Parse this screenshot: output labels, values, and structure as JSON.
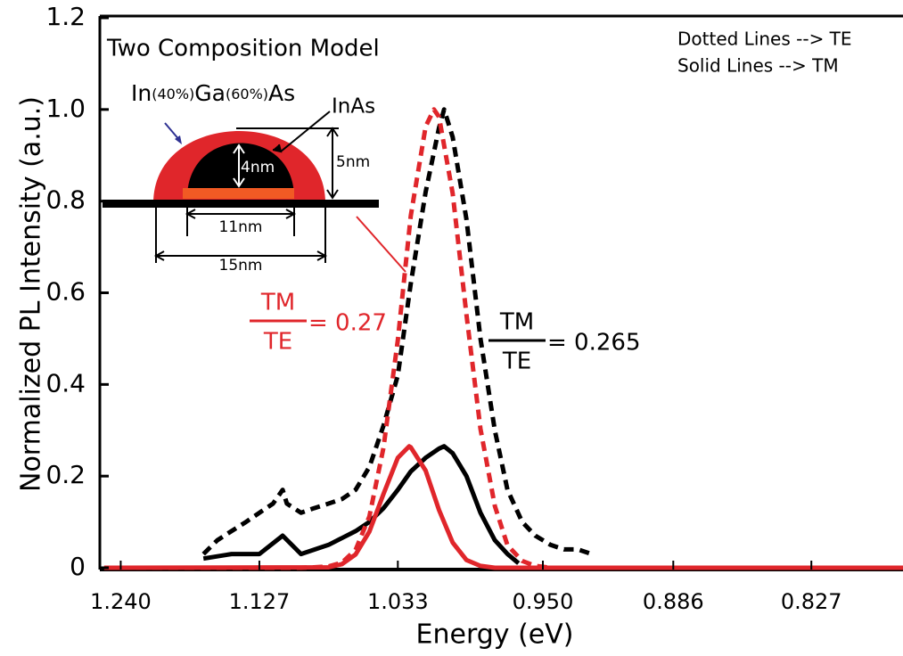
{
  "chart_data": {
    "type": "line",
    "title": "Two Composition Model",
    "xlabel": "Energy (eV)",
    "ylabel": "Normalized PL Intensity (a.u.)",
    "xscale": "reciprocal",
    "xlim": [
      1.259,
      0.792
    ],
    "xticks": [
      {
        "value": 1.24,
        "label": "1.240"
      },
      1.127,
      1.033,
      {
        "value": 0.95,
        "label": "0.950"
      },
      0.886,
      0.827
    ],
    "ylim": [
      0,
      1.2
    ],
    "yticks": [
      0,
      0.2,
      0.4,
      0.6,
      0.8,
      {
        "value": 1,
        "label": "1.0"
      },
      1.2
    ],
    "legend_text": [
      "Dotted Lines --> TE",
      "Solid Lines --> TM"
    ],
    "ratio_annotations": [
      {
        "numerator": "TM",
        "denominator": "TE",
        "text": "= 0.27",
        "color": "#e0262b"
      },
      {
        "numerator": "TM",
        "denominator": "TE",
        "text": "= 0.265",
        "color": "#000000"
      }
    ],
    "inset_labels": {
      "alloy": [
        "In",
        "(40%)",
        "Ga",
        "(60%)",
        "As"
      ],
      "core": "InAs",
      "core_height": "4nm",
      "shell_height": "5nm",
      "core_width": "11nm",
      "shell_width": "15nm"
    },
    "series": [
      {
        "color": "#000000",
        "style": "dashed",
        "x": [
          1.17,
          1.159,
          1.148,
          1.137,
          1.127,
          1.117,
          1.11,
          1.107,
          1.097,
          1.088,
          1.078,
          1.069,
          1.06,
          1.051,
          1.042,
          1.033,
          1.025,
          1.016,
          1.008,
          1.005,
          1.0,
          0.992,
          0.984,
          0.976,
          0.969,
          0.961,
          0.954,
          0.946,
          0.939,
          0.932,
          0.925
        ],
        "values": [
          0.03,
          0.06,
          0.08,
          0.1,
          0.12,
          0.14,
          0.17,
          0.14,
          0.12,
          0.13,
          0.14,
          0.15,
          0.17,
          0.22,
          0.31,
          0.42,
          0.62,
          0.82,
          0.96,
          1.0,
          0.94,
          0.76,
          0.5,
          0.3,
          0.17,
          0.1,
          0.07,
          0.05,
          0.04,
          0.04,
          0.03
        ]
      },
      {
        "color": "#000000",
        "style": "solid",
        "x": [
          1.17,
          1.148,
          1.127,
          1.11,
          1.097,
          1.078,
          1.06,
          1.051,
          1.042,
          1.033,
          1.025,
          1.016,
          1.008,
          1.005,
          1.0,
          0.992,
          0.984,
          0.976,
          0.969,
          0.963
        ],
        "values": [
          0.02,
          0.03,
          0.03,
          0.07,
          0.03,
          0.05,
          0.08,
          0.1,
          0.13,
          0.17,
          0.21,
          0.24,
          0.26,
          0.265,
          0.25,
          0.2,
          0.12,
          0.06,
          0.03,
          0.01
        ]
      },
      {
        "color": "#e0262b",
        "style": "dashed",
        "x": [
          1.255,
          1.097,
          1.088,
          1.078,
          1.069,
          1.06,
          1.051,
          1.042,
          1.033,
          1.025,
          1.016,
          1.011,
          1.008,
          1.0,
          0.992,
          0.984,
          0.976,
          0.969,
          0.961,
          0.954,
          0.946,
          0.792
        ],
        "values": [
          0,
          0,
          0.001,
          0.003,
          0.011,
          0.039,
          0.112,
          0.262,
          0.497,
          0.768,
          0.963,
          1.0,
          0.984,
          0.817,
          0.552,
          0.303,
          0.135,
          0.049,
          0.015,
          0.004,
          0,
          0
        ]
      },
      {
        "color": "#e0262b",
        "style": "solid",
        "x": [
          1.255,
          1.078,
          1.069,
          1.06,
          1.051,
          1.042,
          1.033,
          1.026,
          1.025,
          1.016,
          1.008,
          1.0,
          0.992,
          0.984,
          0.976,
          0.792
        ],
        "values": [
          0,
          0.001,
          0.008,
          0.029,
          0.079,
          0.161,
          0.24,
          0.265,
          0.263,
          0.212,
          0.126,
          0.055,
          0.017,
          0.004,
          0,
          0
        ]
      }
    ]
  }
}
